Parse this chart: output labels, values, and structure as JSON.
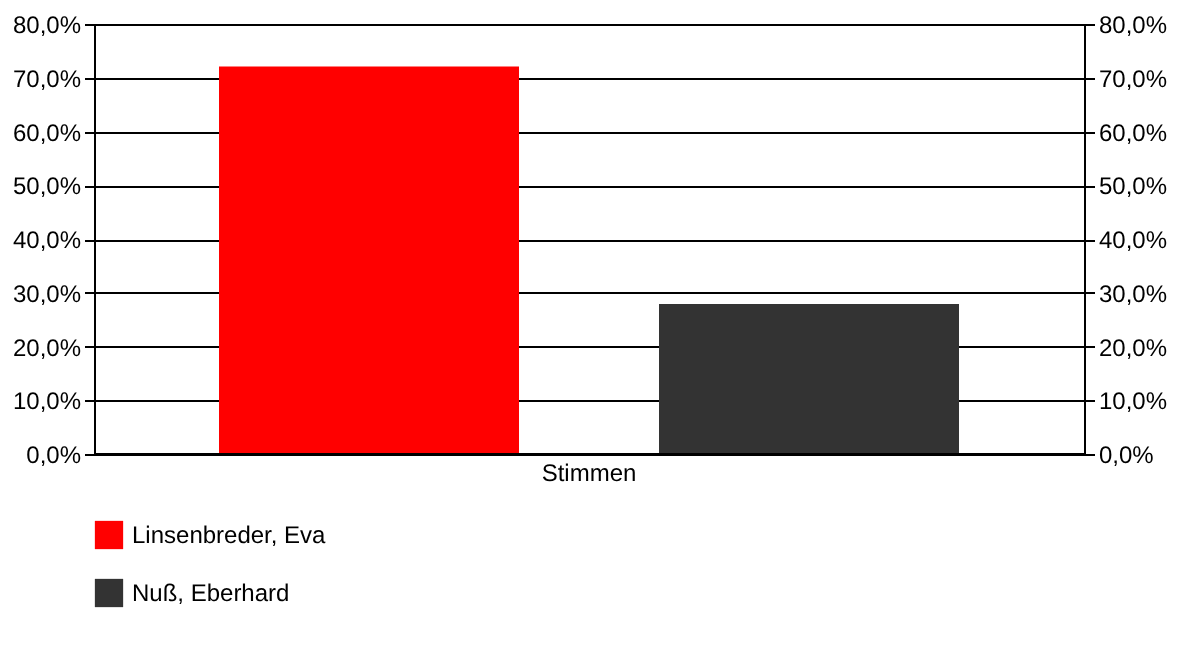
{
  "chart_data": {
    "type": "bar",
    "categories": [
      "Stimmen"
    ],
    "series": [
      {
        "name": "Linsenbreder, Eva",
        "color": "#ff0000",
        "values": [
          72.1
        ]
      },
      {
        "name": "Nuß, Eberhard",
        "color": "#333333",
        "values": [
          27.9
        ]
      }
    ],
    "ylim": [
      0,
      80
    ],
    "yticks": [
      {
        "value": 0,
        "label": "0,0%"
      },
      {
        "value": 10,
        "label": "10,0%"
      },
      {
        "value": 20,
        "label": "20,0%"
      },
      {
        "value": 30,
        "label": "30,0%"
      },
      {
        "value": 40,
        "label": "40,0%"
      },
      {
        "value": 50,
        "label": "50,0%"
      },
      {
        "value": 60,
        "label": "60,0%"
      },
      {
        "value": 70,
        "label": "70,0%"
      },
      {
        "value": 80,
        "label": "80,0%"
      }
    ],
    "grid": "y",
    "legend": "bottom"
  }
}
